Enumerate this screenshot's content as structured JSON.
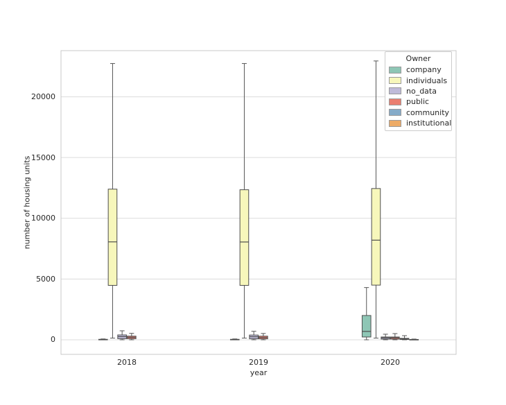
{
  "chart_data": {
    "type": "boxplot",
    "title": "",
    "xlabel": "year",
    "ylabel": "number of housing units",
    "categories": [
      "2018",
      "2019",
      "2020"
    ],
    "ytick_labels": [
      "0",
      "5000",
      "10000",
      "15000",
      "20000"
    ],
    "yticks": [
      0,
      5000,
      10000,
      15000,
      20000
    ],
    "ylim": [
      -1200,
      23800
    ],
    "grid": "horizontal",
    "legend_title": "Owner",
    "legend_position": "upper right inside axes",
    "colors": {
      "box_edge": "#4d4d4d",
      "median_line": "#4d4d4d",
      "whisker": "#565656",
      "grid_line": "#dcdcdc",
      "axes_border": "#c9c9c9",
      "background": "#ffffff"
    },
    "series": [
      {
        "name": "company",
        "color": "#8ec6b5",
        "stats": [
          {
            "min": 0,
            "q1": 5,
            "med": 20,
            "q3": 40,
            "max": 70
          },
          {
            "min": 0,
            "q1": 5,
            "med": 20,
            "q3": 40,
            "max": 70
          },
          {
            "min": 0,
            "q1": 230,
            "med": 690,
            "q3": 2000,
            "max": 4300
          }
        ]
      },
      {
        "name": "individuals",
        "color": "#f7f7bb",
        "stats": [
          {
            "min": 140,
            "q1": 4480,
            "med": 8060,
            "q3": 12400,
            "max": 22740
          },
          {
            "min": 140,
            "q1": 4480,
            "med": 8050,
            "q3": 12350,
            "max": 22740
          },
          {
            "min": 140,
            "q1": 4500,
            "med": 8200,
            "q3": 12450,
            "max": 22950
          }
        ]
      },
      {
        "name": "no_data",
        "color": "#bfbbd9",
        "stats": [
          {
            "min": 0,
            "q1": 90,
            "med": 260,
            "q3": 400,
            "max": 740
          },
          {
            "min": 0,
            "q1": 80,
            "med": 250,
            "q3": 390,
            "max": 700
          },
          {
            "min": 0,
            "q1": 60,
            "med": 160,
            "q3": 230,
            "max": 460
          }
        ]
      },
      {
        "name": "public",
        "color": "#ea7e70",
        "stats": [
          {
            "min": 0,
            "q1": 90,
            "med": 200,
            "q3": 300,
            "max": 530
          },
          {
            "min": 0,
            "q1": 80,
            "med": 190,
            "q3": 300,
            "max": 520
          },
          {
            "min": 0,
            "q1": 60,
            "med": 160,
            "q3": 230,
            "max": 510
          }
        ]
      },
      {
        "name": "community",
        "color": "#85abc9",
        "stats": [
          null,
          null,
          {
            "min": 0,
            "q1": 30,
            "med": 80,
            "q3": 120,
            "max": 340
          }
        ]
      },
      {
        "name": "institutional",
        "color": "#edab66",
        "stats": [
          null,
          null,
          {
            "min": 0,
            "q1": 5,
            "med": 15,
            "q3": 30,
            "max": 60
          }
        ]
      }
    ]
  }
}
